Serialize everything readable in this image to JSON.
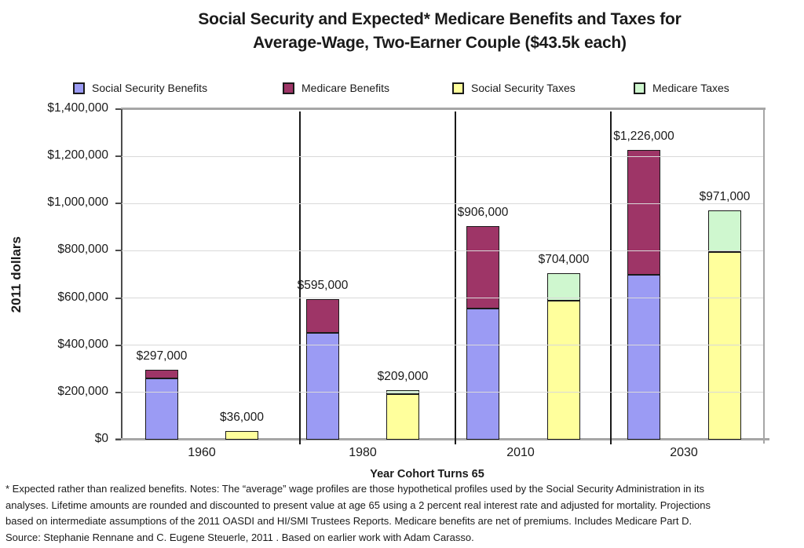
{
  "title": {
    "line1": "Social Security and Expected* Medicare Benefits and Taxes for",
    "line2": "Average-Wage, Two-Earner Couple ($43.5k each)"
  },
  "chart_data": {
    "type": "bar",
    "stacked": true,
    "title": "Social Security and Expected* Medicare Benefits and Taxes for Average-Wage, Two-Earner Couple ($43.5k each)",
    "xlabel": "Year Cohort Turns 65",
    "ylabel": "2011 dollars",
    "ylim": [
      0,
      1400000
    ],
    "ytick_step": 200000,
    "ytick_labels": [
      "$0",
      "$200,000",
      "$400,000",
      "$600,000",
      "$800,000",
      "$1,000,000",
      "$1,200,000",
      "$1,400,000"
    ],
    "grid": "horizontal",
    "legend_position": "top",
    "categories": [
      "1960",
      "1980",
      "2010",
      "2030"
    ],
    "series": [
      {
        "name": "Social Security Benefits",
        "stack": "benefits",
        "color": "#9B9BF4",
        "values": [
          259000,
          452000,
          555000,
          699000
        ]
      },
      {
        "name": "Medicare Benefits",
        "stack": "benefits",
        "color": "#9E3567",
        "values": [
          38000,
          143000,
          351000,
          527000
        ]
      },
      {
        "name": "Social Security Taxes",
        "stack": "taxes",
        "color": "#FFFF9C",
        "values": [
          36000,
          192000,
          588000,
          796000
        ]
      },
      {
        "name": "Medicare Taxes",
        "stack": "taxes",
        "color": "#CFF7CF",
        "values": [
          0,
          17000,
          116000,
          175000
        ]
      }
    ],
    "stack_total_labels": {
      "benefits": [
        "$297,000",
        "$595,000",
        "$906,000",
        "$1,226,000"
      ],
      "taxes": [
        "$36,000",
        "$209,000",
        "$704,000",
        "$971,000"
      ]
    },
    "category_separator_lines": true
  },
  "footnote": {
    "lines": [
      "* Expected rather than realized benefits.  Notes: The “average” wage profiles are those hypothetical profiles used by the Social Security Administration in its",
      "analyses. Lifetime amounts are rounded and discounted to present value at age 65 using a 2 percent real interest rate and adjusted for mortality.  Projections",
      "based on intermediate assumptions of the 2011 OASDI and HI/SMI Trustees Reports.  Medicare benefits are net of premiums. Includes Medicare Part D.",
      "Source: Stephanie Rennane and C. Eugene Steuerle, 2011 . Based on earlier work with Adam Carasso."
    ]
  }
}
